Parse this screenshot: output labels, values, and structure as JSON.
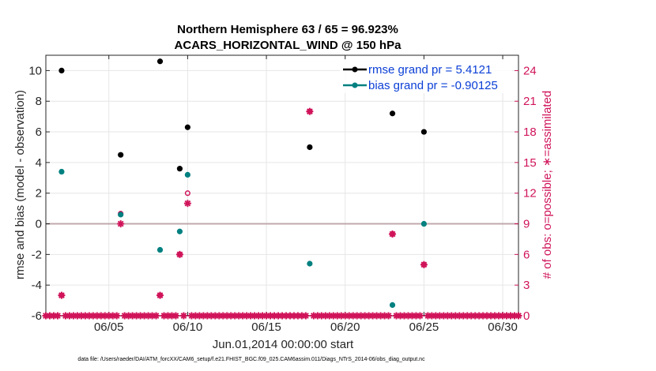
{
  "chart_data": {
    "type": "scatter",
    "title_line1": "Northern Hemisphere 63 / 65 = 96.923%",
    "title_line2": "ACARS_HORIZONTAL_WIND @ 150 hPa",
    "xlabel": "Jun.01,2014 00:00:00 start",
    "ylabel_left": "rmse and bias (model - observation)",
    "ylabel_right": "# of obs: o=possible; ∗=assimilated",
    "x_range": [
      1,
      31
    ],
    "y_left_range": [
      -6,
      11
    ],
    "y_right_range": [
      0,
      25.5
    ],
    "x_ticks": [
      5,
      10,
      15,
      20,
      25,
      30
    ],
    "x_tick_labels": [
      "06/05",
      "06/10",
      "06/15",
      "06/20",
      "06/25",
      "06/30"
    ],
    "y_left_ticks": [
      -6,
      -4,
      -2,
      0,
      2,
      4,
      6,
      8,
      10
    ],
    "y_left_tick_labels": [
      "-6",
      "-4",
      "-2",
      "0",
      "2",
      "4",
      "6",
      "8",
      "10"
    ],
    "y_right_ticks": [
      0,
      3,
      6,
      9,
      12,
      15,
      18,
      21,
      24
    ],
    "y_right_tick_labels": [
      "0",
      "3",
      "6",
      "9",
      "12",
      "15",
      "18",
      "21",
      "24"
    ],
    "grid": true,
    "legend_position": "top-right",
    "series": [
      {
        "name": "rmse grand pr = 5.4121",
        "color": "#000000",
        "axis": "left",
        "x": [
          2.0,
          5.75,
          8.25,
          9.5,
          10.0,
          17.75,
          23.0,
          25.0
        ],
        "y": [
          10.0,
          4.5,
          10.6,
          3.6,
          6.3,
          5.0,
          7.2,
          6.0
        ]
      },
      {
        "name": "bias grand pr = -0.90125",
        "color": "#008080",
        "axis": "left",
        "x": [
          2.0,
          5.75,
          8.25,
          9.5,
          10.0,
          17.75,
          23.0,
          25.0
        ],
        "y": [
          3.4,
          0.6,
          -1.7,
          -0.5,
          3.2,
          -2.6,
          -5.3,
          0.0
        ]
      }
    ],
    "obs_possible": {
      "color": "#d0145a",
      "axis": "right",
      "x": [
        2.0,
        5.75,
        8.25,
        9.5,
        10.0,
        17.75,
        23.0,
        25.0
      ],
      "y": [
        2,
        10,
        2,
        6,
        12,
        20,
        8,
        5
      ]
    },
    "obs_assimilated": {
      "color": "#d0145a",
      "axis": "right",
      "x": [
        2.0,
        5.75,
        8.25,
        9.5,
        10.0,
        17.75,
        23.0,
        25.0
      ],
      "y": [
        2,
        9,
        2,
        6,
        11,
        20,
        8,
        5
      ]
    },
    "zero_count_spacing_days": 0.25,
    "reference_line": 0,
    "reference_color": "#c0a9ae"
  },
  "footer_text": "data file: /Users/raeder/DAI/ATM_forcXX/CAM6_setup/f.e21.FHIST_BGC.f09_025.CAM6assim.011/Diags_NTrS_2014-06/obs_diag_output.nc"
}
